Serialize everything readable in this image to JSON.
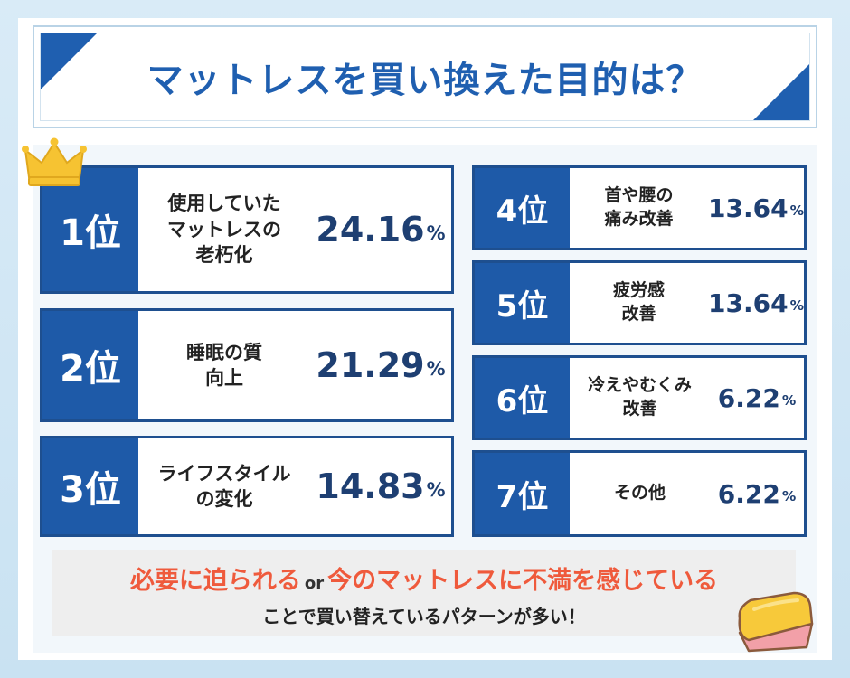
{
  "title": "マットレスを買い換えた目的は？",
  "rankings": [
    {
      "rank": "1位",
      "label_lines": [
        "使用していた",
        "マットレスの",
        "老朽化"
      ],
      "percent": "24.16",
      "unit": "%"
    },
    {
      "rank": "2位",
      "label_lines": [
        "睡眠の質",
        "向上"
      ],
      "percent": "21.29",
      "unit": "%"
    },
    {
      "rank": "3位",
      "label_lines": [
        "ライフスタイル",
        "の変化"
      ],
      "percent": "14.83",
      "unit": "%"
    },
    {
      "rank": "4位",
      "label_lines": [
        "首や腰の",
        "痛み改善"
      ],
      "percent": "13.64",
      "unit": "%"
    },
    {
      "rank": "5位",
      "label_lines": [
        "疲労感",
        "改善"
      ],
      "percent": "13.64",
      "unit": "%"
    },
    {
      "rank": "6位",
      "label_lines": [
        "冷えやむくみ",
        "改善"
      ],
      "percent": "6.22",
      "unit": "%"
    },
    {
      "rank": "7位",
      "label_lines": [
        "その他"
      ],
      "percent": "6.22",
      "unit": "%"
    }
  ],
  "summary": {
    "part1": "必要に迫られる",
    "or": "or",
    "part2": "今のマットレスに不満を感じている",
    "line2": "ことで買い替えているパターンが多い！"
  },
  "icons": {
    "crown": "crown-icon",
    "mattress": "mattress-icon"
  },
  "colors": {
    "primary": "#1e5aa8",
    "accent": "#ef5a3c",
    "highlight": "#f7b6ad"
  }
}
